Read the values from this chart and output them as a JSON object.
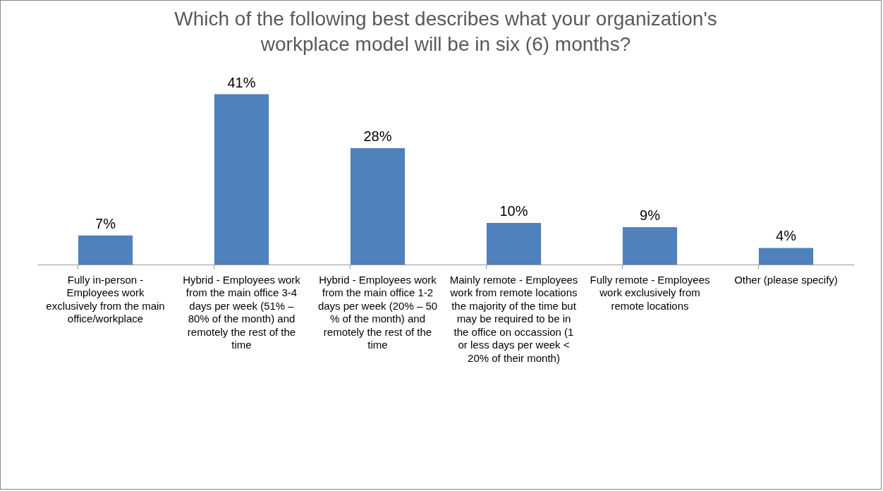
{
  "chart_data": {
    "type": "bar",
    "title": "Which of the following best describes what your organization's workplace model will be in six (6) months?",
    "categories": [
      "Fully in-person - Employees work exclusively from the main office/workplace",
      "Hybrid - Employees work from the main office 3-4 days per week (51% – 80% of the month) and remotely the rest of the time",
      "Hybrid - Employees work from the main office 1-2 days per week (20% – 50 % of the month) and remotely the rest of the time",
      "Mainly remote - Employees work from remote locations the majority of the time but may be required to be in the office on occassion (1 or less days per week < 20% of their month)",
      "Fully remote - Employees work exclusively from remote locations",
      "Other (please specify)"
    ],
    "values": [
      7,
      41,
      28,
      10,
      9,
      4
    ],
    "value_labels": [
      "7%",
      "41%",
      "28%",
      "10%",
      "9%",
      "4%"
    ],
    "color": "#4f81bd"
  }
}
